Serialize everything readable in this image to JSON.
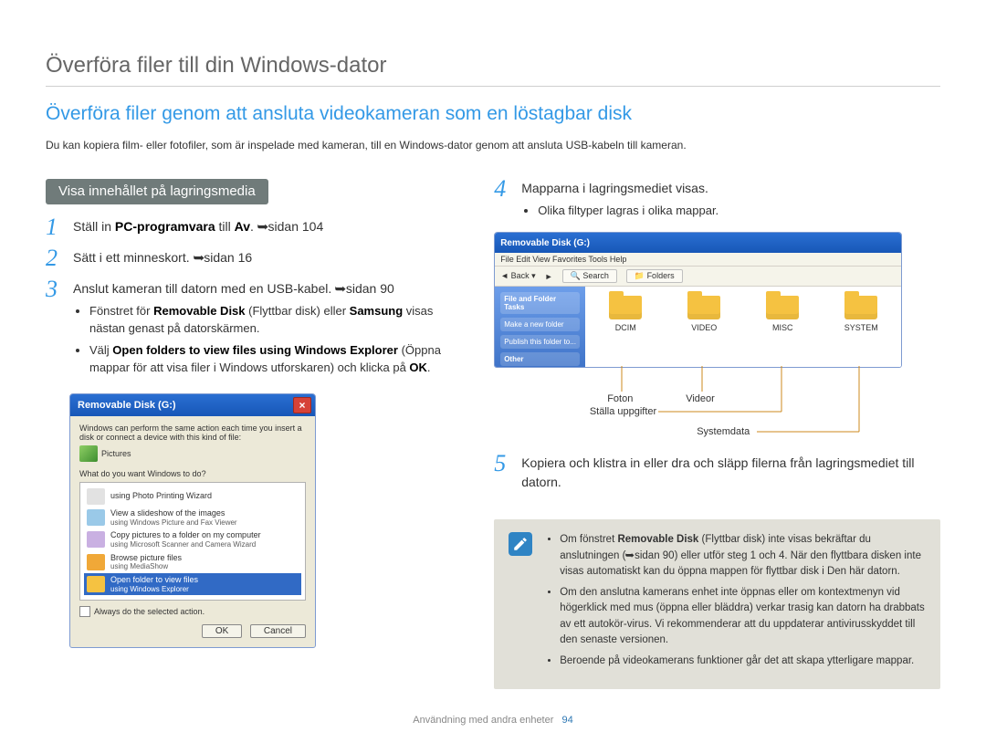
{
  "colors": {
    "accent": "#3399e6",
    "heading": "#666666",
    "pill_bg": "#707b7a",
    "pill_fg": "#ffffff",
    "note_bg": "#e1e0d8",
    "note_icon_bg": "#2f84c4",
    "xp_title_gradient": [
      "#2a6fd2",
      "#1757b7"
    ],
    "xp_body": "#ece9d8",
    "xp_close": "#d64237",
    "folder": "#f5c241",
    "sidepane_gradient": [
      "#6d9eea",
      "#3f74c9"
    ],
    "highlight": "#316ac5"
  },
  "page": {
    "title": "Överföra filer till din Windows-dator",
    "section_title": "Överföra filer genom att ansluta videokameran som en löstagbar disk",
    "intro": "Du kan kopiera film- eller fotofiler, som är inspelade med kameran, till en Windows-dator genom att ansluta USB-kabeln till kameran.",
    "pill": "Visa innehållet på lagringsmedia"
  },
  "steps_left": [
    {
      "n": "1",
      "parts": [
        {
          "t": "Ställ in "
        },
        {
          "t": "PC-programvara",
          "b": true
        },
        {
          "t": " till "
        },
        {
          "t": "Av",
          "b": true
        },
        {
          "t": ". "
        },
        {
          "arrow": true
        },
        {
          "t": "sidan 104"
        }
      ]
    },
    {
      "n": "2",
      "parts": [
        {
          "t": "Sätt i ett minneskort. "
        },
        {
          "arrow": true
        },
        {
          "t": "sidan 16"
        }
      ]
    },
    {
      "n": "3",
      "parts": [
        {
          "t": "Anslut kameran till datorn med en USB-kabel. "
        },
        {
          "arrow": true
        },
        {
          "t": "sidan 90"
        }
      ],
      "sub": [
        {
          "parts": [
            {
              "t": "Fönstret för "
            },
            {
              "t": "Removable Disk",
              "b": true
            },
            {
              "t": " (Flyttbar disk) eller "
            },
            {
              "t": "Samsung",
              "b": true
            },
            {
              "t": " visas nästan genast på datorskärmen."
            }
          ]
        },
        {
          "parts": [
            {
              "t": "Välj "
            },
            {
              "t": "Open folders to view files using Windows Explorer",
              "b": true
            },
            {
              "t": " (Öppna mappar för att visa filer i Windows utforskaren) och klicka på "
            },
            {
              "t": "OK",
              "b": true
            },
            {
              "t": "."
            }
          ]
        }
      ]
    }
  ],
  "steps_right": [
    {
      "n": "4",
      "parts": [
        {
          "t": "Mapparna i lagringsmediet visas."
        }
      ],
      "sub": [
        {
          "parts": [
            {
              "t": "Olika filtyper lagras i olika mappar."
            }
          ]
        }
      ]
    },
    {
      "n": "5",
      "parts": [
        {
          "t": "Kopiera och klistra in eller dra och släpp filerna från lagringsmediet till datorn."
        }
      ]
    }
  ],
  "xp_dialog": {
    "title": "Removable Disk (G:)",
    "msg1": "Windows can perform the same action each time you insert a disk or connect a device with this kind of file:",
    "icon_label": "Pictures",
    "question": "What do you want Windows to do?",
    "items": [
      {
        "label": "using Photo Printing Wizard"
      },
      {
        "label": "View a slideshow of the images\nusing Windows Picture and Fax Viewer"
      },
      {
        "label": "Copy pictures to a folder on my computer\nusing Microsoft Scanner and Camera Wizard"
      },
      {
        "label": "Browse picture files\nusing MediaShow"
      },
      {
        "label_line1": "Open folder to view files",
        "label_line2": "using Windows Explorer",
        "highlight": true
      }
    ],
    "checkbox": "Always do the selected action.",
    "ok": "OK",
    "cancel": "Cancel"
  },
  "explorer": {
    "title": "Removable Disk (G:)",
    "menubar": "File   Edit   View   Favorites   Tools   Help",
    "toolbar": {
      "back": "Back",
      "search": "Search",
      "folders": "Folders"
    },
    "side": {
      "a": "File and Folder Tasks",
      "b": "Make a new folder",
      "c": "Publish this folder to...",
      "d": "Other"
    },
    "folders": [
      "DCIM",
      "VIDEO",
      "MISC",
      "SYSTEM"
    ]
  },
  "callouts": {
    "a": "Foton",
    "b": "Videor",
    "c": "Ställa uppgifter",
    "d": "Systemdata"
  },
  "note": {
    "items": [
      {
        "parts": [
          {
            "t": "Om fönstret "
          },
          {
            "t": "Removable Disk",
            "b": true
          },
          {
            "t": " (Flyttbar disk) inte visas bekräftar du anslutningen ("
          },
          {
            "arrow": true
          },
          {
            "t": "sidan 90) eller utför steg 1 och 4. När den flyttbara disken inte visas automatiskt kan du öppna mappen för flyttbar disk i Den här datorn."
          }
        ]
      },
      {
        "parts": [
          {
            "t": "Om den anslutna kamerans enhet inte öppnas eller om kontextmenyn vid högerklick med mus (öppna eller bläddra) verkar trasig kan datorn ha drabbats av ett autokör-virus. Vi rekommenderar att du uppdaterar antivirusskyddet till den senaste versionen."
          }
        ]
      },
      {
        "parts": [
          {
            "t": "Beroende på videokamerans funktioner går det att skapa ytterligare mappar."
          }
        ]
      }
    ]
  },
  "footer": {
    "label": "Användning med andra enheter",
    "page": "94"
  }
}
